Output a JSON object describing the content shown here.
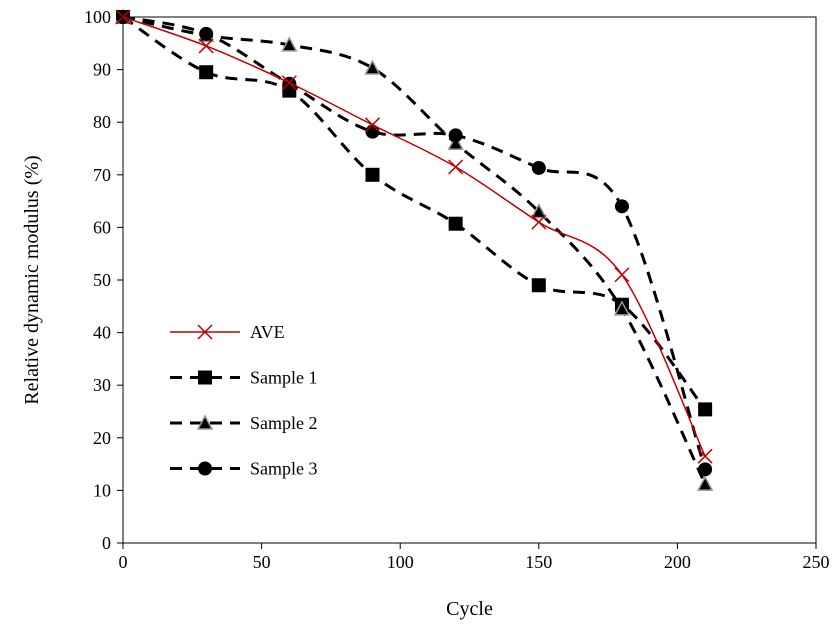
{
  "chart_data": {
    "type": "line",
    "title": "",
    "xlabel": "Cycle",
    "ylabel": "Relative dynamic modulus (%)",
    "xlim": [
      0,
      250
    ],
    "ylim": [
      0,
      100
    ],
    "x_ticks": [
      0,
      50,
      100,
      150,
      200,
      250
    ],
    "y_ticks": [
      0,
      10,
      20,
      30,
      40,
      50,
      60,
      70,
      80,
      90,
      100
    ],
    "grid": false,
    "legend_position": "lower-left",
    "series": [
      {
        "name": "AVE",
        "marker": "x",
        "line_style": "solid",
        "color": "#c00000",
        "x": [
          0,
          30,
          60,
          90,
          120,
          150,
          180,
          210
        ],
        "y": [
          100,
          94.5,
          87.5,
          79.5,
          71.5,
          61,
          51,
          16.5
        ]
      },
      {
        "name": "Sample 1",
        "marker": "square",
        "line_style": "dashed",
        "color": "#000000",
        "x": [
          0,
          30,
          60,
          90,
          120,
          150,
          180,
          210
        ],
        "y": [
          100,
          89.5,
          86,
          70,
          60.7,
          49,
          45.3,
          25.4
        ]
      },
      {
        "name": "Sample 2",
        "marker": "triangle",
        "line_style": "dashed",
        "color": "#000000",
        "x": [
          0,
          30,
          60,
          90,
          120,
          150,
          180,
          210
        ],
        "y": [
          100,
          96.5,
          94.7,
          90.3,
          76,
          63,
          44.5,
          11.2
        ]
      },
      {
        "name": "Sample 3",
        "marker": "circle",
        "line_style": "dashed",
        "color": "#000000",
        "x": [
          0,
          30,
          60,
          90,
          120,
          150,
          180,
          210
        ],
        "y": [
          100,
          96.8,
          87.3,
          78.2,
          77.5,
          71.3,
          64,
          14
        ]
      }
    ]
  }
}
